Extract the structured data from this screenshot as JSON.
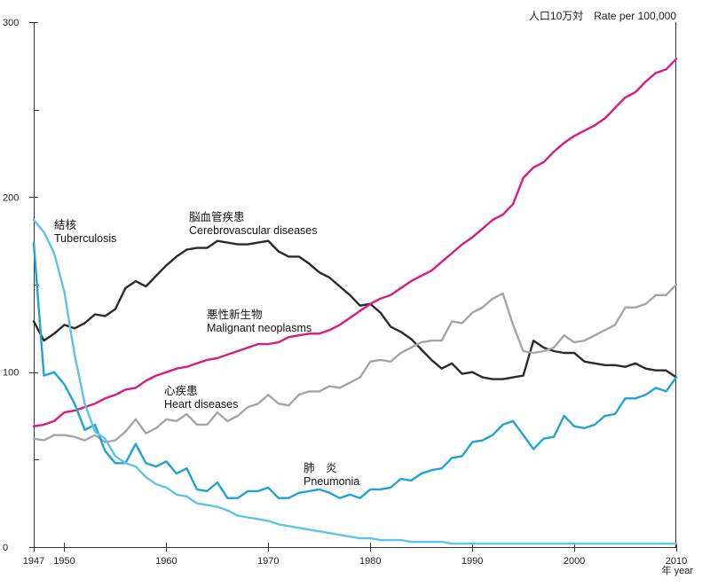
{
  "chart_data": {
    "type": "line",
    "unit_label": "人口10万対　Rate per 100,000",
    "xlabel": "年 year",
    "ylim": [
      0,
      300
    ],
    "y_ticks": [
      0,
      100,
      200,
      300
    ],
    "y_minor_ticks": [
      50,
      150,
      250
    ],
    "xlim": [
      1947,
      2010
    ],
    "x_ticks": [
      1947,
      1950,
      1960,
      1970,
      1980,
      1990,
      2000,
      2010
    ],
    "grid": false,
    "series": [
      {
        "name": "Cerebrovascular diseases",
        "label_ja": "脳血管疾患",
        "label_en": "Cerebrovascular diseases",
        "color": "#2b2b2b",
        "x": [
          1947,
          1948,
          1949,
          1950,
          1951,
          1952,
          1953,
          1954,
          1955,
          1956,
          1957,
          1958,
          1959,
          1960,
          1961,
          1962,
          1963,
          1964,
          1965,
          1966,
          1967,
          1968,
          1969,
          1970,
          1971,
          1972,
          1973,
          1974,
          1975,
          1976,
          1977,
          1978,
          1979,
          1980,
          1981,
          1982,
          1983,
          1984,
          1985,
          1986,
          1987,
          1988,
          1989,
          1990,
          1991,
          1992,
          1993,
          1994,
          1995,
          1996,
          1997,
          1998,
          1999,
          2000,
          2001,
          2002,
          2003,
          2004,
          2005,
          2006,
          2007,
          2008,
          2009,
          2010
        ],
        "values": [
          129,
          118,
          122,
          127,
          125,
          128,
          133,
          132,
          136,
          148,
          152,
          149,
          155,
          161,
          166,
          170,
          171,
          171,
          175,
          174,
          173,
          173,
          174,
          175,
          169,
          166,
          166,
          162,
          157,
          154,
          149,
          144,
          138,
          139,
          134,
          126,
          123,
          119,
          113,
          107,
          102,
          105,
          99,
          100,
          97,
          96,
          96,
          97,
          98,
          118,
          114,
          112,
          111,
          111,
          106,
          105,
          104,
          104,
          103,
          105,
          102,
          101,
          101,
          97
        ]
      },
      {
        "name": "Malignant neoplasms",
        "label_ja": "悪性新生物",
        "label_en": "Malignant neoplasms",
        "color": "#d81b7f",
        "x": [
          1947,
          1948,
          1949,
          1950,
          1951,
          1952,
          1953,
          1954,
          1955,
          1956,
          1957,
          1958,
          1959,
          1960,
          1961,
          1962,
          1963,
          1964,
          1965,
          1966,
          1967,
          1968,
          1969,
          1970,
          1971,
          1972,
          1973,
          1974,
          1975,
          1976,
          1977,
          1978,
          1979,
          1980,
          1981,
          1982,
          1983,
          1984,
          1985,
          1986,
          1987,
          1988,
          1989,
          1990,
          1991,
          1992,
          1993,
          1994,
          1995,
          1996,
          1997,
          1998,
          1999,
          2000,
          2001,
          2002,
          2003,
          2004,
          2005,
          2006,
          2007,
          2008,
          2009,
          2010
        ],
        "values": [
          69,
          70,
          72,
          77,
          78,
          80,
          82,
          85,
          87,
          90,
          91,
          95,
          98,
          100,
          102,
          103,
          105,
          107,
          108,
          110,
          112,
          114,
          116,
          116,
          117,
          120,
          121,
          122,
          122,
          124,
          127,
          131,
          135,
          139,
          142,
          144,
          148,
          152,
          155,
          158,
          163,
          168,
          173,
          177,
          182,
          187,
          190,
          196,
          211,
          217,
          220,
          226,
          231,
          235,
          238,
          241,
          245,
          251,
          257,
          260,
          266,
          271,
          273,
          279
        ]
      },
      {
        "name": "Heart diseases",
        "label_ja": "心疾患",
        "label_en": "Heart diseases",
        "color": "#a3a5a8",
        "x": [
          1947,
          1948,
          1949,
          1950,
          1951,
          1952,
          1953,
          1954,
          1955,
          1956,
          1957,
          1958,
          1959,
          1960,
          1961,
          1962,
          1963,
          1964,
          1965,
          1966,
          1967,
          1968,
          1969,
          1970,
          1971,
          1972,
          1973,
          1974,
          1975,
          1976,
          1977,
          1978,
          1979,
          1980,
          1981,
          1982,
          1983,
          1984,
          1985,
          1986,
          1987,
          1988,
          1989,
          1990,
          1991,
          1992,
          1993,
          1994,
          1995,
          1996,
          1997,
          1998,
          1999,
          2000,
          2001,
          2002,
          2003,
          2004,
          2005,
          2006,
          2007,
          2008,
          2009,
          2010
        ],
        "values": [
          62,
          61,
          64,
          64,
          63,
          61,
          64,
          60,
          61,
          66,
          73,
          65,
          68,
          73,
          72,
          76,
          70,
          70,
          77,
          72,
          75,
          80,
          82,
          87,
          82,
          81,
          87,
          89,
          89,
          92,
          91,
          94,
          97,
          106,
          107,
          106,
          111,
          114,
          117,
          118,
          118,
          129,
          128,
          134,
          137,
          142,
          145,
          127,
          112,
          111,
          112,
          114,
          121,
          117,
          118,
          121,
          124,
          127,
          137,
          137,
          139,
          144,
          144,
          150
        ]
      },
      {
        "name": "Pneumonia",
        "label_ja": "肺　炎",
        "label_en": "Pneumonia",
        "color": "#1fa3d5",
        "x": [
          1947,
          1948,
          1949,
          1950,
          1951,
          1952,
          1953,
          1954,
          1955,
          1956,
          1957,
          1958,
          1959,
          1960,
          1961,
          1962,
          1963,
          1964,
          1965,
          1966,
          1967,
          1968,
          1969,
          1970,
          1971,
          1972,
          1973,
          1974,
          1975,
          1976,
          1977,
          1978,
          1979,
          1980,
          1981,
          1982,
          1983,
          1984,
          1985,
          1986,
          1987,
          1988,
          1989,
          1990,
          1991,
          1992,
          1993,
          1994,
          1995,
          1996,
          1997,
          1998,
          1999,
          2000,
          2001,
          2002,
          2003,
          2004,
          2005,
          2006,
          2007,
          2008,
          2009,
          2010
        ],
        "values": [
          174,
          98,
          100,
          93,
          82,
          67,
          70,
          55,
          48,
          48,
          59,
          48,
          46,
          49,
          42,
          45,
          33,
          32,
          37,
          28,
          28,
          32,
          32,
          34,
          28,
          28,
          31,
          32,
          33,
          31,
          28,
          30,
          28,
          33,
          33,
          34,
          39,
          38,
          42,
          44,
          45,
          51,
          52,
          60,
          61,
          64,
          70,
          72,
          64,
          56,
          62,
          63,
          75,
          69,
          68,
          70,
          75,
          76,
          85,
          85,
          87,
          91,
          89,
          97
        ]
      },
      {
        "name": "Tuberculosis",
        "label_ja": "結核",
        "label_en": "Tuberculosis",
        "color": "#5cc3ec",
        "x": [
          1947,
          1948,
          1949,
          1950,
          1951,
          1952,
          1953,
          1954,
          1955,
          1956,
          1957,
          1958,
          1959,
          1960,
          1961,
          1962,
          1963,
          1964,
          1965,
          1966,
          1967,
          1968,
          1969,
          1970,
          1971,
          1972,
          1973,
          1974,
          1975,
          1976,
          1977,
          1978,
          1979,
          1980,
          1981,
          1982,
          1983,
          1984,
          1985,
          1986,
          1987,
          1988,
          1989,
          1990,
          1991,
          1992,
          1993,
          1994,
          1995,
          1996,
          1997,
          1998,
          1999,
          2000,
          2001,
          2002,
          2003,
          2004,
          2005,
          2006,
          2007,
          2008,
          2009,
          2010
        ],
        "values": [
          187,
          180,
          168,
          146,
          110,
          82,
          66,
          62,
          52,
          48,
          46,
          40,
          36,
          34,
          30,
          29,
          25,
          24,
          23,
          21,
          18,
          17,
          16,
          15,
          13,
          12,
          11,
          10,
          9,
          8,
          7,
          6,
          5,
          5,
          4,
          4,
          4,
          3,
          3,
          3,
          3,
          2,
          2,
          2,
          2,
          2,
          2,
          2,
          2,
          2,
          2,
          2,
          2,
          2,
          2,
          2,
          2,
          2,
          2,
          2,
          2,
          2,
          2,
          2
        ]
      }
    ]
  }
}
